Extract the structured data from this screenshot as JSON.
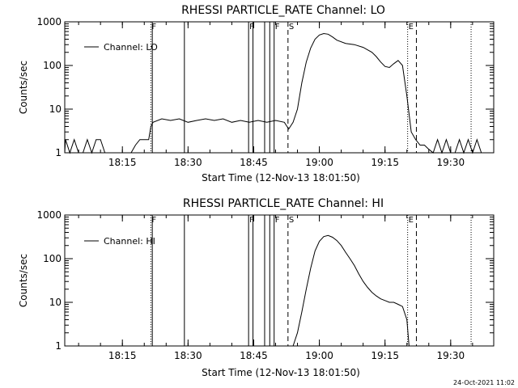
{
  "stamp": "24-Oct-2021 11:02",
  "chart_data": [
    {
      "type": "line",
      "title": "RHESSI PARTICLE_RATE Channel: LO",
      "xlabel": "Start Time (12-Nov-13 18:01:50)",
      "ylabel": "Counts/sec",
      "yscale": "log",
      "ylim": [
        1,
        1000
      ],
      "xlim": [
        "18:01:50",
        "19:39:50"
      ],
      "x_ticks": [
        "18:15",
        "18:30",
        "18:45",
        "19:00",
        "19:15",
        "19:30"
      ],
      "y_ticks": [
        "1",
        "10",
        "100",
        "1000"
      ],
      "series": [
        {
          "name": "Channel: LO",
          "x": [
            "18:01:50",
            "18:02",
            "18:03",
            "18:04",
            "18:05",
            "18:06",
            "18:07",
            "18:08",
            "18:09",
            "18:10",
            "18:11",
            "18:12",
            "18:13",
            "18:14",
            "18:15",
            "18:16",
            "18:17",
            "18:18",
            "18:19",
            "18:20",
            "18:21",
            "18:21:30",
            "18:22",
            "18:24",
            "18:26",
            "18:28",
            "18:30",
            "18:32",
            "18:34",
            "18:36",
            "18:38",
            "18:40",
            "18:42",
            "18:44",
            "18:46",
            "18:48",
            "18:50",
            "18:52",
            "18:53",
            "18:54",
            "18:55",
            "18:56",
            "18:57",
            "18:58",
            "18:59",
            "19:00",
            "19:01",
            "19:02",
            "19:03",
            "19:04",
            "19:06",
            "19:08",
            "19:10",
            "19:12",
            "19:13",
            "19:14",
            "19:15",
            "19:16",
            "19:17",
            "19:18",
            "19:19",
            "19:20",
            "19:21",
            "19:22",
            "19:23",
            "19:24",
            "19:25",
            "19:26",
            "19:27",
            "19:28",
            "19:29",
            "19:30",
            "19:31",
            "19:32",
            "19:33",
            "19:34",
            "19:35",
            "19:36",
            "19:37",
            "19:38"
          ],
          "values": [
            1,
            2,
            1,
            2,
            1,
            1,
            2,
            1,
            2,
            2,
            1,
            1,
            1,
            1,
            1,
            1,
            1,
            1.5,
            2,
            2,
            2,
            4,
            5,
            6,
            5.5,
            6,
            5,
            5.5,
            6,
            5.5,
            6,
            5,
            5.5,
            5,
            5.5,
            5,
            5.5,
            5,
            3.5,
            5,
            10,
            40,
            120,
            250,
            400,
            500,
            540,
            520,
            450,
            380,
            320,
            300,
            260,
            200,
            160,
            120,
            95,
            90,
            110,
            130,
            100,
            20,
            3,
            2,
            1.5,
            1.5,
            1.2,
            1,
            2,
            1,
            2,
            1,
            1,
            2,
            1,
            2,
            1,
            2,
            1,
            1
          ]
        }
      ],
      "markers": [
        {
          "label": "F",
          "time": "18:21:30",
          "style": "dotted"
        },
        {
          "label": "",
          "time": "18:21:50",
          "style": "solid"
        },
        {
          "label": "",
          "time": "18:29:10",
          "style": "solid"
        },
        {
          "label": "F",
          "time": "18:43:50",
          "style": "solid"
        },
        {
          "label": "",
          "time": "18:44:50",
          "style": "solid"
        },
        {
          "label": "",
          "time": "18:47:30",
          "style": "solid"
        },
        {
          "label": "",
          "time": "18:48:40",
          "style": "solid"
        },
        {
          "label": "F",
          "time": "18:49:40",
          "style": "solid"
        },
        {
          "label": "S",
          "time": "18:52:50",
          "style": "dashed"
        },
        {
          "label": "E",
          "time": "19:20:10",
          "style": "dotted"
        },
        {
          "label": "",
          "time": "19:22:10",
          "style": "dashed"
        },
        {
          "label": "",
          "time": "19:34:40",
          "style": "dotted"
        }
      ]
    },
    {
      "type": "line",
      "title": "RHESSI PARTICLE_RATE Channel: HI",
      "xlabel": "Start Time (12-Nov-13 18:01:50)",
      "ylabel": "Counts/sec",
      "yscale": "log",
      "ylim": [
        1,
        1000
      ],
      "xlim": [
        "18:01:50",
        "19:39:50"
      ],
      "x_ticks": [
        "18:15",
        "18:30",
        "18:45",
        "19:00",
        "19:15",
        "19:30"
      ],
      "y_ticks": [
        "1",
        "10",
        "100",
        "1000"
      ],
      "series": [
        {
          "name": "Channel: HI",
          "x": [
            "18:54",
            "18:55",
            "18:56",
            "18:57",
            "18:58",
            "18:59",
            "19:00",
            "19:01",
            "19:02",
            "19:03",
            "19:04",
            "19:05",
            "19:06",
            "19:07",
            "19:08",
            "19:09",
            "19:10",
            "19:11",
            "19:12",
            "19:13",
            "19:14",
            "19:15",
            "19:16",
            "19:17",
            "19:18",
            "19:19",
            "19:20",
            "19:20:30"
          ],
          "values": [
            1,
            2,
            6,
            20,
            60,
            150,
            250,
            320,
            340,
            310,
            260,
            200,
            140,
            100,
            70,
            45,
            30,
            22,
            17,
            14,
            12,
            11,
            10,
            10,
            9,
            8,
            4,
            1
          ]
        }
      ],
      "markers": [
        {
          "label": "F",
          "time": "18:21:30",
          "style": "dotted"
        },
        {
          "label": "",
          "time": "18:21:50",
          "style": "solid"
        },
        {
          "label": "",
          "time": "18:29:10",
          "style": "solid"
        },
        {
          "label": "F",
          "time": "18:43:50",
          "style": "solid"
        },
        {
          "label": "",
          "time": "18:44:50",
          "style": "solid"
        },
        {
          "label": "",
          "time": "18:47:30",
          "style": "solid"
        },
        {
          "label": "",
          "time": "18:48:40",
          "style": "solid"
        },
        {
          "label": "F",
          "time": "18:49:40",
          "style": "solid"
        },
        {
          "label": "S",
          "time": "18:52:50",
          "style": "dashed"
        },
        {
          "label": "E",
          "time": "19:20:10",
          "style": "dotted"
        },
        {
          "label": "",
          "time": "19:22:10",
          "style": "dashed"
        },
        {
          "label": "",
          "time": "19:34:40",
          "style": "dotted"
        }
      ]
    }
  ]
}
